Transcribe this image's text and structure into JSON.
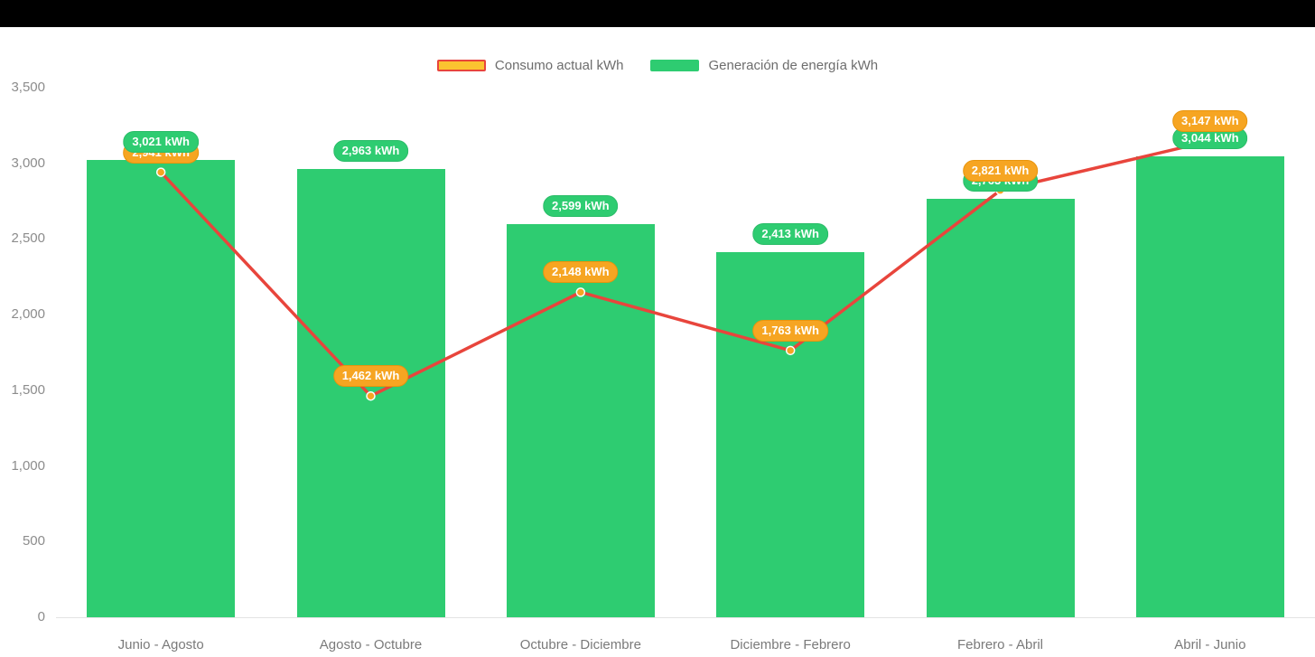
{
  "page": {
    "background": "#000000",
    "canvas": "#ffffff"
  },
  "legend": {
    "items": [
      {
        "name": "consumo",
        "label": "Consumo actual kWh",
        "swatch_fill": "#FBC330",
        "swatch_border": "#E8453C"
      },
      {
        "name": "generacion",
        "label": "Generación de energía kWh",
        "swatch_fill": "#2ECC71",
        "swatch_border": "#2ECC71"
      }
    ]
  },
  "chart_data": {
    "type": "bar",
    "title": "",
    "xlabel": "",
    "ylabel": "",
    "grid": false,
    "legend_position": "top-center",
    "ylim": [
      0,
      3500
    ],
    "categories": [
      "Junio - Agosto",
      "Agosto - Octubre",
      "Octubre - Diciembre",
      "Diciembre - Febrero",
      "Febrero - Abril",
      "Abril - Junio"
    ],
    "yticks": [
      {
        "value": 3500,
        "label": "3,500"
      },
      {
        "value": 3000,
        "label": "3,000"
      },
      {
        "value": 2500,
        "label": "2,500"
      },
      {
        "value": 2000,
        "label": "2,000"
      },
      {
        "value": 1500,
        "label": "1,500"
      },
      {
        "value": 1000,
        "label": "1,000"
      },
      {
        "value": 500,
        "label": "500"
      },
      {
        "value": 0,
        "label": "0"
      }
    ],
    "series": [
      {
        "name": "Generación de energía kWh",
        "type": "bar",
        "color": "#2ECC71",
        "values": [
          3021,
          2963,
          2599,
          2413,
          2763,
          3044
        ],
        "labels": [
          "3,021 kWh",
          "2,963 kWh",
          "2,599 kWh",
          "2,413 kWh",
          "2,763 kWh",
          "3,044 kWh"
        ]
      },
      {
        "name": "Consumo actual kWh",
        "type": "line",
        "color": "#E8453C",
        "marker_color": "#F6A522",
        "badge_color": "#F6A522",
        "values": [
          2941,
          1462,
          2148,
          1763,
          2821,
          3147
        ],
        "labels": [
          "2,941 kWh",
          "1,462 kWh",
          "2,148 kWh",
          "1,763 kWh",
          "2,821 kWh",
          "3,147 kWh"
        ]
      }
    ]
  }
}
